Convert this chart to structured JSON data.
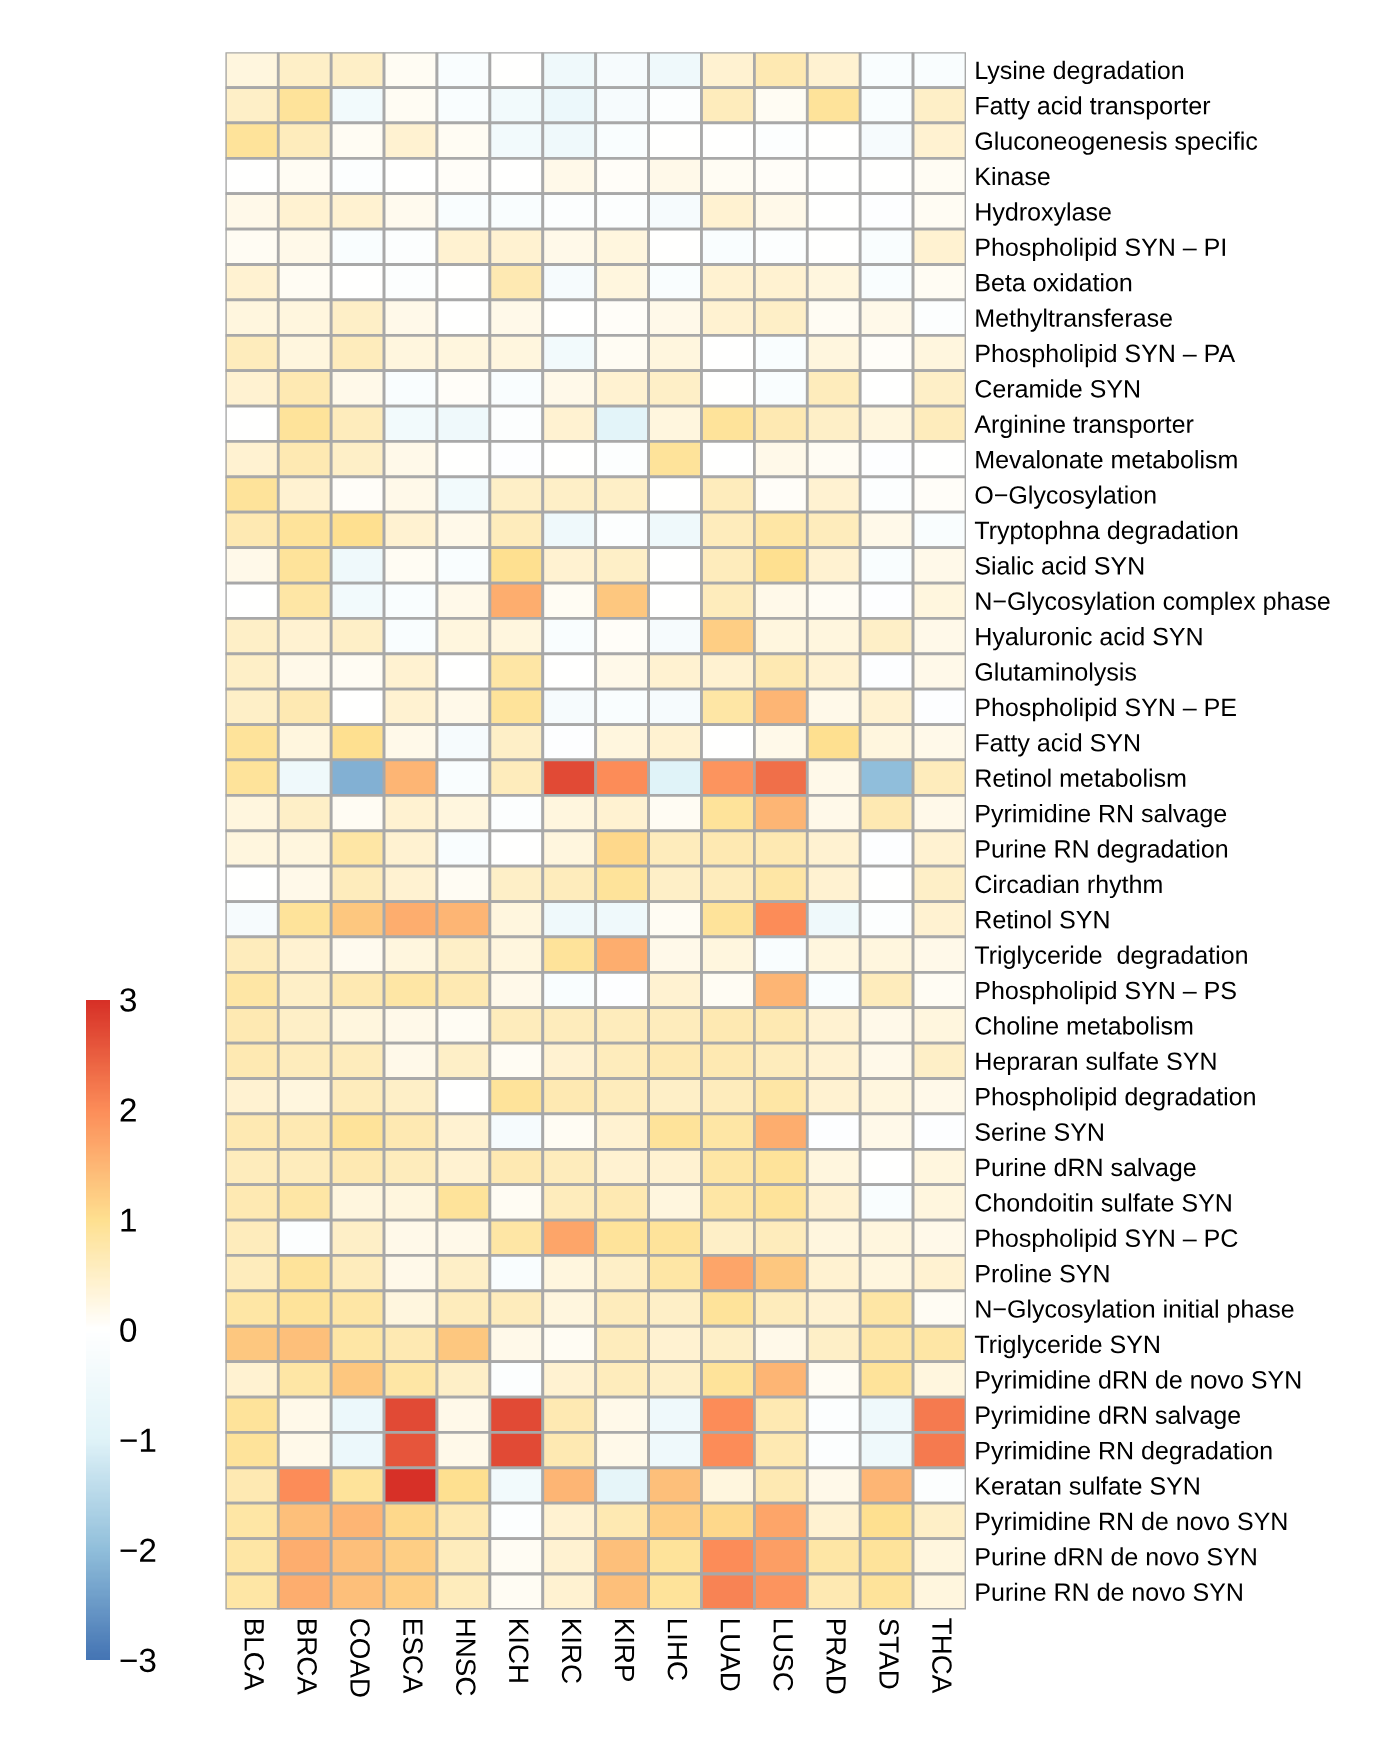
{
  "chart_data": {
    "type": "heatmap",
    "categories": [
      "BLCA",
      "BRCA",
      "COAD",
      "ESCA",
      "HNSC",
      "KICH",
      "KIRC",
      "KIRP",
      "LIHC",
      "LUAD",
      "LUSC",
      "PRAD",
      "STAD",
      "THCA"
    ],
    "y_categories": [
      "Lysine degradation",
      "Fatty acid transporter",
      "Gluconeogenesis specific",
      "Kinase",
      "Hydroxylase",
      "Phospholipid SYN – PI",
      "Beta oxidation",
      "Methyltransferase",
      "Phospholipid SYN – PA",
      "Ceramide SYN",
      "Arginine transporter",
      "Mevalonate metabolism",
      "O−Glycosylation",
      "Tryptophna degradation",
      "Sialic acid SYN",
      "N−Glycosylation complex phase",
      "Hyaluronic acid SYN",
      "Glutaminolysis",
      "Phospholipid SYN – PE",
      "Fatty acid SYN",
      "Retinol metabolism",
      "Pyrimidine RN salvage",
      "Purine RN degradation",
      "Circadian rhythm",
      "Retinol SYN",
      "Triglyceride  degradation",
      "Phospholipid SYN – PS",
      "Choline metabolism",
      "Hepraran sulfate SYN",
      "Phospholipid degradation",
      "Serine SYN",
      "Purine dRN salvage",
      "Chondoitin sulfate SYN",
      "Phospholipid SYN – PC",
      "Proline SYN",
      "N−Glycosylation initial phase",
      "Triglyceride SYN",
      "Pyrimidine dRN de novo SYN",
      "Pyrimidine dRN salvage",
      "Pyrimidine RN degradation",
      "Keratan sulfate SYN",
      "Pyrimidine RN de novo SYN",
      "Purine dRN de novo SYN",
      "Purine RN de novo SYN"
    ],
    "cells": [
      [
        0.3,
        0.5,
        0.5,
        0.1,
        -0.2,
        0,
        -0.5,
        -0.3,
        -0.5,
        0.4,
        0.7,
        0.4,
        -0.2,
        -0.2
      ],
      [
        0.5,
        0.9,
        -0.4,
        0.1,
        -0.2,
        -0.4,
        -0.6,
        -0.3,
        -0.1,
        0.6,
        0.1,
        0.9,
        -0.2,
        0.5
      ],
      [
        0.9,
        0.6,
        0.1,
        0.4,
        0.1,
        -0.4,
        -0.5,
        -0.2,
        0,
        0,
        -0.1,
        0,
        -0.3,
        0.4
      ],
      [
        0,
        0.1,
        -0.1,
        0,
        0.05,
        0,
        0.2,
        0.05,
        0.2,
        0.1,
        0.05,
        0,
        0,
        0.1
      ],
      [
        0.2,
        0.4,
        0.4,
        0.15,
        -0.2,
        -0.2,
        -0.1,
        -0.1,
        -0.3,
        0.4,
        0.2,
        0,
        -0.05,
        0.1
      ],
      [
        0.1,
        0.2,
        -0.2,
        -0.1,
        0.4,
        0.4,
        0.2,
        0.3,
        0,
        -0.2,
        -0.1,
        0,
        -0.2,
        0.4
      ],
      [
        0.4,
        0.1,
        0,
        -0.1,
        0,
        0.7,
        -0.3,
        0.3,
        -0.2,
        0.4,
        0.4,
        0.3,
        -0.2,
        0.1
      ],
      [
        0.3,
        0.3,
        0.5,
        0.2,
        0,
        0.2,
        0,
        0.05,
        0.2,
        0.4,
        0.5,
        0.1,
        0.2,
        -0.1
      ],
      [
        0.6,
        0.3,
        0.6,
        0.3,
        0.3,
        0.3,
        -0.4,
        0.1,
        0.3,
        0,
        -0.2,
        0.3,
        0.05,
        0.3
      ],
      [
        0.4,
        0.7,
        0.2,
        -0.2,
        0.05,
        -0.2,
        0.2,
        0.4,
        0.5,
        0,
        -0.2,
        0.6,
        0,
        0.5
      ],
      [
        0,
        0.9,
        0.6,
        -0.4,
        -0.5,
        -0.1,
        0.4,
        -0.9,
        0.3,
        0.9,
        0.7,
        0.5,
        0.3,
        0.6
      ],
      [
        0.4,
        0.7,
        0.5,
        0.2,
        0,
        -0.05,
        0,
        -0.1,
        0.9,
        0,
        0.2,
        0.1,
        -0.05,
        0
      ],
      [
        0.9,
        0.4,
        0.05,
        0.2,
        -0.4,
        0.5,
        0.5,
        0.5,
        0,
        0.6,
        0.05,
        0.4,
        -0.1,
        0.05
      ],
      [
        0.7,
        0.9,
        1.0,
        0.4,
        0.2,
        0.6,
        -0.5,
        -0.1,
        -0.5,
        0.6,
        0.8,
        0.6,
        0.2,
        -0.2
      ],
      [
        0.2,
        0.9,
        -0.5,
        0.1,
        -0.2,
        1.0,
        0.4,
        0.5,
        0,
        0.6,
        1.0,
        0.4,
        -0.2,
        0.2
      ],
      [
        0,
        0.8,
        -0.4,
        -0.2,
        0.2,
        1.6,
        0.1,
        1.3,
        0,
        0.6,
        0.2,
        0.1,
        -0.05,
        0.3
      ],
      [
        0.5,
        0.4,
        0.5,
        -0.2,
        0.3,
        0.3,
        -0.2,
        0.05,
        -0.3,
        1.2,
        0.3,
        0.3,
        0.5,
        0.2
      ],
      [
        0.5,
        0.2,
        0.1,
        0.4,
        0,
        0.8,
        0,
        0.2,
        0.4,
        0.4,
        0.7,
        0.4,
        -0.05,
        0.2
      ],
      [
        0.5,
        0.7,
        0,
        0.4,
        0.2,
        0.9,
        -0.3,
        -0.2,
        -0.3,
        0.8,
        1.5,
        0.2,
        0.4,
        -0.05
      ],
      [
        0.9,
        0.3,
        1.0,
        0.2,
        -0.3,
        0.5,
        -0.05,
        0.3,
        0.4,
        0,
        0.2,
        1.0,
        0.3,
        0.2
      ],
      [
        0.9,
        -0.5,
        -2.2,
        1.5,
        -0.2,
        0.6,
        2.7,
        2.0,
        -1.0,
        1.9,
        2.3,
        0.2,
        -2.0,
        0.6
      ],
      [
        0.3,
        0.5,
        0.1,
        0.4,
        0.3,
        -0.1,
        0.3,
        0.4,
        0.1,
        0.9,
        1.5,
        0.2,
        0.7,
        0.2
      ],
      [
        0.3,
        0.3,
        0.8,
        0.4,
        -0.2,
        0,
        0.3,
        1.1,
        0.6,
        0.7,
        0.7,
        0.4,
        -0.05,
        0.4
      ],
      [
        0,
        0.2,
        0.6,
        0.4,
        0.1,
        0.5,
        0.6,
        0.9,
        0.5,
        0.6,
        0.8,
        0.4,
        0,
        0.5
      ],
      [
        -0.3,
        0.9,
        1.3,
        1.6,
        1.5,
        0.3,
        -0.5,
        -0.5,
        0.1,
        0.9,
        2.0,
        -0.5,
        -0.1,
        0.4
      ],
      [
        0.6,
        0.4,
        0.15,
        0.3,
        0.5,
        0.3,
        0.9,
        1.6,
        0.2,
        0.3,
        -0.2,
        0.3,
        0.3,
        0.2
      ],
      [
        0.8,
        0.5,
        0.7,
        0.8,
        0.7,
        0.2,
        -0.2,
        -0.05,
        0.4,
        0.1,
        1.5,
        -0.2,
        0.6,
        0.1
      ],
      [
        0.7,
        0.5,
        0.3,
        0.2,
        0.1,
        0.6,
        0.6,
        0.6,
        0.6,
        0.7,
        0.7,
        0.4,
        0.2,
        0.3
      ],
      [
        0.7,
        0.6,
        0.6,
        0.2,
        0.5,
        0.1,
        0.4,
        0.6,
        0.7,
        0.7,
        0.6,
        0.4,
        0.2,
        0.5
      ],
      [
        0.4,
        0.3,
        0.6,
        0.5,
        0,
        0.9,
        0.7,
        0.6,
        0.5,
        0.6,
        0.8,
        0.4,
        0.3,
        0.2
      ],
      [
        0.7,
        0.7,
        0.9,
        0.7,
        0.4,
        -0.3,
        0.1,
        0.4,
        0.9,
        0.8,
        1.6,
        -0.05,
        0.2,
        -0.05
      ],
      [
        0.6,
        0.6,
        0.7,
        0.6,
        0.4,
        0.7,
        0.6,
        0.4,
        0.4,
        0.8,
        0.9,
        0.3,
        0,
        0.3
      ],
      [
        0.7,
        0.8,
        0.3,
        0.3,
        0.9,
        0.1,
        0.6,
        0.7,
        0.3,
        0.8,
        0.9,
        0.4,
        -0.2,
        0.3
      ],
      [
        0.6,
        -0.1,
        0.5,
        0.2,
        0.2,
        0.8,
        1.7,
        0.9,
        0.9,
        0.5,
        0.6,
        0.3,
        0.3,
        0.2
      ],
      [
        0.6,
        0.9,
        0.6,
        0.2,
        0.5,
        -0.2,
        0.3,
        0.5,
        0.8,
        1.7,
        1.3,
        0.4,
        0.3,
        0.4
      ],
      [
        0.8,
        0.9,
        0.8,
        0.3,
        0.6,
        0.6,
        0.3,
        0.6,
        0.5,
        0.9,
        0.6,
        0.4,
        0.8,
        0.1
      ],
      [
        1.3,
        1.4,
        0.8,
        0.7,
        1.3,
        0.2,
        0.1,
        0.6,
        0.4,
        0.5,
        0.2,
        0.5,
        0.8,
        0.8
      ],
      [
        0.4,
        0.8,
        1.3,
        0.8,
        0.5,
        -0.1,
        0.4,
        0.6,
        0.5,
        0.9,
        1.5,
        0.1,
        0.9,
        0.3
      ],
      [
        0.9,
        0.2,
        -0.6,
        2.7,
        0.2,
        2.7,
        0.7,
        0.2,
        -0.5,
        2.0,
        0.7,
        -0.1,
        -0.5,
        2.2
      ],
      [
        0.9,
        0.2,
        -0.6,
        2.6,
        0.2,
        2.7,
        0.7,
        0.2,
        -0.5,
        2.0,
        0.7,
        -0.1,
        -0.5,
        2.2
      ],
      [
        0.7,
        2.0,
        0.9,
        3.0,
        1.0,
        -0.4,
        1.5,
        -0.8,
        1.4,
        0.3,
        0.7,
        0.2,
        1.5,
        -0.1
      ],
      [
        0.8,
        1.4,
        1.5,
        1.1,
        0.7,
        -0.1,
        0.4,
        0.7,
        1.2,
        1.1,
        1.7,
        0.4,
        1.0,
        0.5
      ],
      [
        0.8,
        1.6,
        1.4,
        1.2,
        0.6,
        0.1,
        0.4,
        1.4,
        0.9,
        2.0,
        1.8,
        0.8,
        0.9,
        0.3
      ],
      [
        0.8,
        1.6,
        1.4,
        1.2,
        0.6,
        0.1,
        0.4,
        1.4,
        0.9,
        2.1,
        1.9,
        0.7,
        0.9,
        0.3
      ]
    ],
    "colors": [
      "#4575b4",
      "#91bfdb",
      "#e0f3f8",
      "#ffffff",
      "#fee090",
      "#fc8d59",
      "#d73027"
    ],
    "clim": [
      -3,
      3
    ],
    "cticks": [
      3,
      2,
      1,
      0,
      {
        "value": -1,
        "label": "−1"
      },
      {
        "value": -2,
        "label": "−2"
      },
      {
        "value": -3,
        "label": "−3"
      }
    ]
  }
}
